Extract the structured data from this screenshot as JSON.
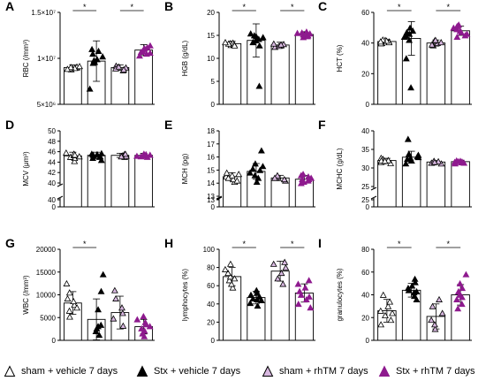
{
  "colors": {
    "sham": "#ffffff",
    "stx": "#000000",
    "sham_rhtm": "#d8b8e0",
    "stx_rhtm": "#8e1a8e",
    "bar": "#ffffff",
    "axis": "#000000",
    "sham_stroke": "#000000",
    "sham_rhtm_stroke": "#000000"
  },
  "legend": [
    {
      "key": "sham",
      "label": "sham + vehicle 7 days",
      "icon": "open-triangle-icon"
    },
    {
      "key": "stx",
      "label": "Stx + vehicle 7 days",
      "icon": "filled-triangle-icon"
    },
    {
      "key": "sham_rhtm",
      "label": "sham + rhTM 7 days",
      "icon": "lilac-triangle-icon"
    },
    {
      "key": "stx_rhtm",
      "label": "Stx + rhTM 7 days",
      "icon": "purple-triangle-icon"
    }
  ],
  "chart_data": [
    {
      "panel": "A",
      "type": "bar",
      "ylabel": "RBC (/mm³)",
      "ylim": [
        5000000,
        15000000
      ],
      "yticks": [
        5000000,
        10000000,
        15000000
      ],
      "yticklabels": [
        "5×10⁶",
        "1×10⁷",
        "1.5×10⁷"
      ],
      "series": [
        {
          "group": "sham",
          "mean": 9000000,
          "sd": 300000,
          "points": [
            8800000,
            8900000,
            9000000,
            9100000,
            8950000,
            9050000,
            8850000,
            9150000
          ]
        },
        {
          "group": "stx",
          "mean": 9700000,
          "sd": 2200000,
          "points": [
            6700000,
            9800000,
            10500000,
            11000000,
            9600000,
            10200000,
            9900000,
            10800000,
            9500000
          ]
        },
        {
          "group": "sham_rhtm",
          "mean": 9000000,
          "sd": 300000,
          "points": [
            8700000,
            9000000,
            9200000,
            8900000,
            9100000,
            8800000
          ]
        },
        {
          "group": "stx_rhtm",
          "mean": 10900000,
          "sd": 600000,
          "points": [
            10300000,
            10600000,
            11000000,
            11400000,
            10800000,
            11200000,
            10500000,
            11100000,
            10700000
          ]
        }
      ],
      "sig": [
        {
          "from": 0,
          "to": 1,
          "label": "*"
        },
        {
          "from": 2,
          "to": 3,
          "label": "*"
        }
      ]
    },
    {
      "panel": "B",
      "type": "bar",
      "ylabel": "HGB (g/dL)",
      "ylim": [
        0,
        20
      ],
      "yticks": [
        0,
        5,
        10,
        15,
        20
      ],
      "yticklabels": [
        "0",
        "5",
        "10",
        "15",
        "20"
      ],
      "series": [
        {
          "group": "sham",
          "mean": 13.2,
          "sd": 0.5,
          "points": [
            12.9,
            13.1,
            13.3,
            13.4,
            13.0,
            13.2,
            13.5,
            12.8
          ]
        },
        {
          "group": "stx",
          "mean": 13.9,
          "sd": 3.6,
          "points": [
            4.0,
            12.8,
            13.5,
            14.2,
            15.0,
            14.6,
            13.9,
            15.4,
            14.8
          ]
        },
        {
          "group": "sham_rhtm",
          "mean": 12.9,
          "sd": 0.6,
          "points": [
            12.5,
            12.8,
            13.2,
            12.7,
            13.1,
            13.0
          ]
        },
        {
          "group": "stx_rhtm",
          "mean": 15.2,
          "sd": 0.6,
          "points": [
            14.6,
            15.0,
            15.4,
            15.8,
            14.9,
            15.5,
            15.2,
            14.8,
            15.6
          ]
        }
      ],
      "sig": [
        {
          "from": 0,
          "to": 1,
          "label": "*"
        },
        {
          "from": 2,
          "to": 3,
          "label": "*"
        }
      ]
    },
    {
      "panel": "C",
      "type": "bar",
      "ylabel": "HCT (%)",
      "ylim": [
        0,
        60
      ],
      "yticks": [
        0,
        20,
        40,
        60
      ],
      "yticklabels": [
        "0",
        "20",
        "40",
        "60"
      ],
      "series": [
        {
          "group": "sham",
          "mean": 41,
          "sd": 1.2,
          "points": [
            40,
            41,
            42,
            40.5,
            41.5,
            39.8,
            42.2,
            41
          ]
        },
        {
          "group": "stx",
          "mean": 43,
          "sd": 11,
          "points": [
            11,
            30,
            44,
            46,
            48,
            42,
            45,
            47,
            50
          ]
        },
        {
          "group": "sham_rhtm",
          "mean": 40,
          "sd": 2,
          "points": [
            38.5,
            40,
            41.5,
            39,
            42,
            40.5
          ]
        },
        {
          "group": "stx_rhtm",
          "mean": 48,
          "sd": 3,
          "points": [
            44,
            46,
            48,
            50,
            52,
            47,
            49,
            45,
            51
          ]
        }
      ],
      "sig": [
        {
          "from": 0,
          "to": 1,
          "label": "*"
        },
        {
          "from": 2,
          "to": 3,
          "label": "*"
        }
      ]
    },
    {
      "panel": "D",
      "type": "bar",
      "ylabel": "MCV (μm³)",
      "yticklabels": [
        "0",
        "40",
        "40",
        "42",
        "44",
        "46",
        "48",
        "50"
      ],
      "series": [
        {
          "group": "sham",
          "mean": 45.2,
          "sd": 0.7,
          "points": [
            44.2,
            44.8,
            45.0,
            45.3,
            45.6,
            45.8,
            45.1,
            45.4
          ]
        },
        {
          "group": "stx",
          "mean": 45.3,
          "sd": 0.6,
          "points": [
            44.4,
            44.8,
            45.1,
            45.5,
            45.7,
            45.2,
            45.4,
            45.6,
            45.0
          ]
        },
        {
          "group": "sham_rhtm",
          "mean": 45.3,
          "sd": 0.4,
          "points": [
            45.0,
            45.3,
            45.5,
            45.2,
            45.6,
            45.1
          ]
        },
        {
          "group": "stx_rhtm",
          "mean": 45.3,
          "sd": 0.4,
          "points": [
            45.0,
            45.2,
            45.4,
            45.6,
            45.1,
            45.3,
            45.5,
            45.2
          ]
        }
      ],
      "sig": []
    },
    {
      "panel": "E",
      "type": "bar",
      "ylabel": "MCH (pg)",
      "yticklabels": [
        "0",
        "13",
        "13",
        "14",
        "15",
        "16",
        "17",
        "18"
      ],
      "series": [
        {
          "group": "sham",
          "mean": 14.5,
          "sd": 0.3,
          "points": [
            14.1,
            14.3,
            14.5,
            14.6,
            14.8,
            14.4,
            14.7,
            14.2
          ]
        },
        {
          "group": "stx",
          "mean": 14.9,
          "sd": 0.6,
          "points": [
            14.1,
            14.4,
            14.8,
            15.1,
            15.3,
            14.6,
            15.0,
            15.5,
            16.5
          ]
        },
        {
          "group": "sham_rhtm",
          "mean": 14.4,
          "sd": 0.2,
          "points": [
            14.2,
            14.4,
            14.5,
            14.3,
            14.6,
            14.4
          ]
        },
        {
          "group": "stx_rhtm",
          "mean": 14.3,
          "sd": 0.3,
          "points": [
            14.0,
            14.1,
            14.3,
            14.4,
            14.6,
            14.2,
            14.5,
            14.3,
            14.7
          ]
        }
      ],
      "sig": []
    },
    {
      "panel": "F",
      "type": "bar",
      "ylabel": "MCHC (g/dL)",
      "yticklabels": [
        "0",
        "25",
        "25",
        "30",
        "35",
        "40"
      ],
      "series": [
        {
          "group": "sham",
          "mean": 32,
          "sd": 0.6,
          "points": [
            31.3,
            31.8,
            32.1,
            32.4,
            31.6,
            32.7,
            32.0,
            31.9
          ]
        },
        {
          "group": "stx",
          "mean": 32.9,
          "sd": 1.6,
          "points": [
            31.2,
            32.0,
            32.6,
            33.1,
            33.5,
            32.4,
            33.8,
            32.9,
            37.8
          ]
        },
        {
          "group": "sham_rhtm",
          "mean": 31.6,
          "sd": 0.4,
          "points": [
            31.2,
            31.5,
            31.8,
            31.4,
            31.9,
            31.6
          ]
        },
        {
          "group": "stx_rhtm",
          "mean": 31.7,
          "sd": 0.4,
          "points": [
            31.2,
            31.5,
            31.8,
            32.0,
            31.6,
            31.9,
            31.4,
            31.7
          ]
        }
      ],
      "sig": []
    },
    {
      "panel": "G",
      "type": "bar",
      "ylabel": "WBC (/mm³)",
      "ylim": [
        0,
        20000
      ],
      "yticks": [
        0,
        5000,
        10000,
        15000,
        20000
      ],
      "yticklabels": [
        "0",
        "5000",
        "10000",
        "15000",
        "20000"
      ],
      "series": [
        {
          "group": "sham",
          "mean": 8200,
          "sd": 2500,
          "points": [
            5200,
            6500,
            7800,
            8600,
            9200,
            10500,
            12500,
            7200
          ]
        },
        {
          "group": "stx",
          "mean": 4600,
          "sd": 4500,
          "points": [
            1200,
            2000,
            2600,
            3100,
            3400,
            6800,
            10800,
            14500
          ]
        },
        {
          "group": "sham_rhtm",
          "mean": 6100,
          "sd": 3600,
          "points": [
            3200,
            4800,
            6000,
            7200,
            9200,
            11000
          ]
        },
        {
          "group": "stx_rhtm",
          "mean": 3000,
          "sd": 1600,
          "points": [
            900,
            1500,
            2100,
            2600,
            3100,
            3500,
            4000,
            4600,
            5300
          ]
        }
      ],
      "sig": [
        {
          "from": 0,
          "to": 1,
          "label": "*"
        }
      ]
    },
    {
      "panel": "H",
      "type": "bar",
      "ylabel": "lymphocytes (%)",
      "ylim": [
        0,
        100
      ],
      "yticks": [
        0,
        20,
        40,
        60,
        80,
        100
      ],
      "yticklabels": [
        "0",
        "20",
        "40",
        "60",
        "80",
        "100"
      ],
      "series": [
        {
          "group": "sham",
          "mean": 70,
          "sd": 10,
          "points": [
            58,
            62,
            66,
            70,
            74,
            78,
            84,
            68
          ]
        },
        {
          "group": "stx",
          "mean": 47,
          "sd": 7,
          "points": [
            38,
            41,
            44,
            46,
            48,
            50,
            52,
            55,
            45
          ]
        },
        {
          "group": "sham_rhtm",
          "mean": 76,
          "sd": 11,
          "points": [
            62,
            68,
            74,
            80,
            84,
            86
          ]
        },
        {
          "group": "stx_rhtm",
          "mean": 52,
          "sd": 10,
          "points": [
            36,
            40,
            45,
            50,
            54,
            58,
            62,
            66,
            48
          ]
        }
      ],
      "sig": [
        {
          "from": 0,
          "to": 1,
          "label": "*"
        },
        {
          "from": 2,
          "to": 3,
          "label": "*"
        }
      ]
    },
    {
      "panel": "I",
      "type": "bar",
      "ylabel": "granulocytes (%)",
      "ylim": [
        0,
        80
      ],
      "yticks": [
        0,
        20,
        40,
        60,
        80
      ],
      "yticklabels": [
        "0",
        "20",
        "40",
        "60",
        "80"
      ],
      "series": [
        {
          "group": "sham",
          "mean": 26,
          "sd": 10,
          "points": [
            14,
            18,
            22,
            26,
            30,
            34,
            40,
            24
          ]
        },
        {
          "group": "stx",
          "mean": 44,
          "sd": 6,
          "points": [
            36,
            39,
            42,
            44,
            46,
            48,
            51,
            54,
            43
          ]
        },
        {
          "group": "sham_rhtm",
          "mean": 21,
          "sd": 11,
          "points": [
            10,
            14,
            18,
            24,
            30,
            36
          ]
        },
        {
          "group": "stx_rhtm",
          "mean": 40,
          "sd": 9,
          "points": [
            28,
            32,
            36,
            40,
            43,
            46,
            50,
            58,
            38
          ]
        }
      ],
      "sig": [
        {
          "from": 0,
          "to": 1,
          "label": "*"
        },
        {
          "from": 2,
          "to": 3,
          "label": "*"
        }
      ]
    }
  ]
}
